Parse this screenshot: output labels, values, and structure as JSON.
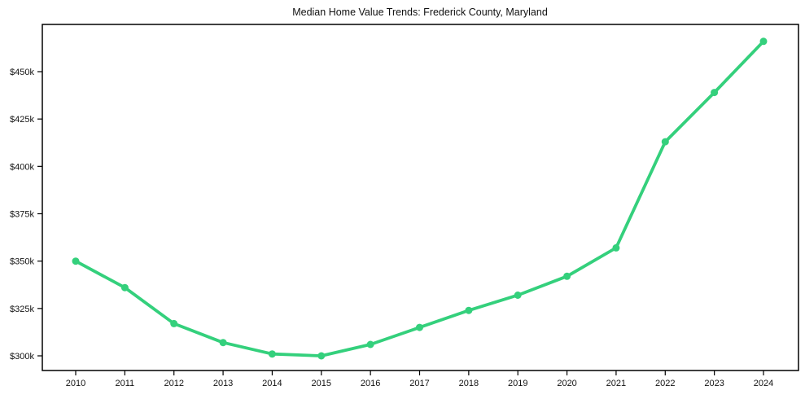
{
  "chart_data": {
    "type": "line",
    "title": "Median Home Value Trends: Frederick County, Maryland",
    "x": [
      2010,
      2011,
      2012,
      2013,
      2014,
      2015,
      2016,
      2017,
      2018,
      2019,
      2020,
      2021,
      2022,
      2023,
      2024
    ],
    "series": [
      {
        "name": "median-home-value",
        "units": "thousand USD",
        "values": [
          350,
          336,
          317,
          307,
          301,
          300,
          306,
          315,
          324,
          332,
          342,
          357,
          413,
          439,
          466
        ]
      }
    ],
    "xlabel": "",
    "ylabel": "",
    "x_tick_labels": [
      "2010",
      "2011",
      "2012",
      "2013",
      "2014",
      "2015",
      "2016",
      "2017",
      "2018",
      "2019",
      "2020",
      "2021",
      "2022",
      "2023",
      "2024"
    ],
    "y_ticks": [
      300,
      325,
      350,
      375,
      400,
      425,
      450
    ],
    "y_tick_labels": [
      "$300k",
      "$325k",
      "$350k",
      "$375k",
      "$400k",
      "$425k",
      "$450k"
    ],
    "ylim": [
      292,
      475
    ],
    "grid": false,
    "legend": "none",
    "styles": {
      "line_color": "#34d07c",
      "marker": "circle",
      "marker_color": "#34d07c",
      "axis_color": "#000000",
      "text_color": "#111111",
      "background_color": "#ffffff"
    }
  }
}
